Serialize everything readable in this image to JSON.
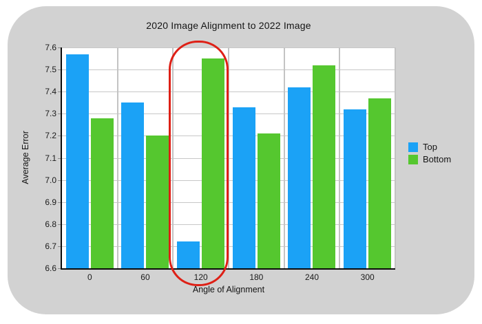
{
  "card": {
    "background": "#d2d2d2"
  },
  "chart_data": {
    "type": "bar",
    "title": "2020 Image Alignment to 2022 Image",
    "xlabel": "Angle of Alignment",
    "ylabel": "Average Error",
    "categories": [
      "0",
      "60",
      "120",
      "180",
      "240",
      "300"
    ],
    "series": [
      {
        "name": "Top",
        "color": "#1ba2f6",
        "values": [
          7.57,
          7.35,
          6.72,
          7.33,
          7.42,
          7.32
        ]
      },
      {
        "name": "Bottom",
        "color": "#55c72f",
        "values": [
          7.28,
          7.2,
          7.55,
          7.21,
          7.52,
          7.37
        ]
      }
    ],
    "ylim": [
      6.6,
      7.6
    ],
    "ytick_step": 0.1,
    "grid": true,
    "legend_position": "right",
    "annotation": {
      "type": "highlight-oval",
      "color": "#de2016",
      "target_category": "120",
      "note": "red rounded outline circling the 120-degree group"
    }
  }
}
